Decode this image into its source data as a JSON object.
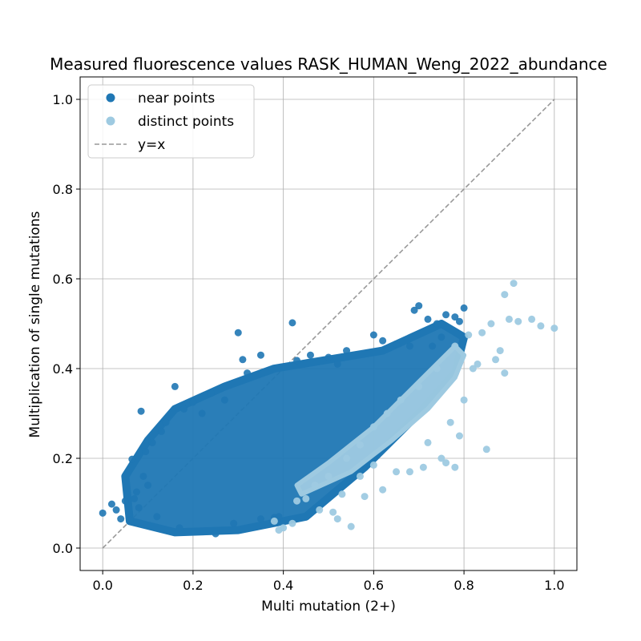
{
  "chart_data": {
    "type": "scatter",
    "title": "Measured fluorescence values RASK_HUMAN_Weng_2022_abundance",
    "xlabel": "Multi mutation (2+)",
    "ylabel": "Multiplication of single mutations",
    "xlim": [
      -0.05,
      1.05
    ],
    "ylim": [
      -0.05,
      1.05
    ],
    "xticks": [
      "0.0",
      "0.2",
      "0.4",
      "0.6",
      "0.8",
      "1.0"
    ],
    "yticks": [
      "0.0",
      "0.2",
      "0.4",
      "0.6",
      "0.8",
      "1.0"
    ],
    "grid": true,
    "legend_position": "top-left",
    "colors": {
      "near": "#1f77b4",
      "distinct": "#9ecae1",
      "reference": "#999999"
    },
    "series": [
      {
        "name": "near points",
        "marker": "circle",
        "points": [
          [
            0.0,
            0.078
          ],
          [
            0.02,
            0.098
          ],
          [
            0.03,
            0.085
          ],
          [
            0.04,
            0.065
          ],
          [
            0.05,
            0.105
          ],
          [
            0.06,
            0.062
          ],
          [
            0.065,
            0.198
          ],
          [
            0.07,
            0.11
          ],
          [
            0.075,
            0.125
          ],
          [
            0.08,
            0.09
          ],
          [
            0.085,
            0.305
          ],
          [
            0.09,
            0.16
          ],
          [
            0.095,
            0.215
          ],
          [
            0.1,
            0.14
          ],
          [
            0.11,
            0.235
          ],
          [
            0.12,
            0.07
          ],
          [
            0.13,
            0.26
          ],
          [
            0.14,
            0.28
          ],
          [
            0.16,
            0.36
          ],
          [
            0.17,
            0.045
          ],
          [
            0.18,
            0.31
          ],
          [
            0.2,
            0.325
          ],
          [
            0.22,
            0.3
          ],
          [
            0.24,
            0.345
          ],
          [
            0.25,
            0.032
          ],
          [
            0.27,
            0.33
          ],
          [
            0.29,
            0.055
          ],
          [
            0.3,
            0.48
          ],
          [
            0.31,
            0.42
          ],
          [
            0.32,
            0.39
          ],
          [
            0.35,
            0.43
          ],
          [
            0.38,
            0.068
          ],
          [
            0.39,
            0.07
          ],
          [
            0.42,
            0.502
          ],
          [
            0.43,
            0.418
          ],
          [
            0.46,
            0.43
          ],
          [
            0.5,
            0.425
          ],
          [
            0.52,
            0.41
          ],
          [
            0.54,
            0.44
          ],
          [
            0.6,
            0.475
          ],
          [
            0.62,
            0.462
          ],
          [
            0.65,
            0.455
          ],
          [
            0.68,
            0.45
          ],
          [
            0.7,
            0.54
          ],
          [
            0.69,
            0.53
          ],
          [
            0.72,
            0.51
          ],
          [
            0.74,
            0.5
          ],
          [
            0.76,
            0.52
          ],
          [
            0.78,
            0.515
          ],
          [
            0.8,
            0.535
          ],
          [
            0.79,
            0.505
          ],
          [
            0.75,
            0.47
          ],
          [
            0.73,
            0.45
          ],
          [
            0.35,
            0.065
          ],
          [
            0.45,
            0.11
          ]
        ]
      },
      {
        "name": "distinct points",
        "marker": "circle",
        "points": [
          [
            0.38,
            0.06
          ],
          [
            0.39,
            0.04
          ],
          [
            0.4,
            0.045
          ],
          [
            0.42,
            0.055
          ],
          [
            0.43,
            0.105
          ],
          [
            0.45,
            0.11
          ],
          [
            0.48,
            0.085
          ],
          [
            0.51,
            0.08
          ],
          [
            0.52,
            0.065
          ],
          [
            0.55,
            0.048
          ],
          [
            0.53,
            0.12
          ],
          [
            0.58,
            0.115
          ],
          [
            0.57,
            0.16
          ],
          [
            0.62,
            0.13
          ],
          [
            0.6,
            0.185
          ],
          [
            0.65,
            0.17
          ],
          [
            0.68,
            0.17
          ],
          [
            0.71,
            0.18
          ],
          [
            0.72,
            0.235
          ],
          [
            0.75,
            0.2
          ],
          [
            0.76,
            0.19
          ],
          [
            0.78,
            0.18
          ],
          [
            0.77,
            0.28
          ],
          [
            0.79,
            0.25
          ],
          [
            0.8,
            0.33
          ],
          [
            0.82,
            0.4
          ],
          [
            0.85,
            0.22
          ],
          [
            0.84,
            0.48
          ],
          [
            0.86,
            0.5
          ],
          [
            0.88,
            0.44
          ],
          [
            0.89,
            0.39
          ],
          [
            0.9,
            0.51
          ],
          [
            0.91,
            0.59
          ],
          [
            0.89,
            0.565
          ],
          [
            0.95,
            0.51
          ],
          [
            0.97,
            0.495
          ],
          [
            1.0,
            0.49
          ],
          [
            0.92,
            0.505
          ],
          [
            0.87,
            0.42
          ],
          [
            0.81,
            0.475
          ],
          [
            0.83,
            0.41
          ],
          [
            0.78,
            0.45
          ],
          [
            0.74,
            0.4
          ],
          [
            0.7,
            0.36
          ],
          [
            0.66,
            0.33
          ],
          [
            0.63,
            0.3
          ],
          [
            0.6,
            0.27
          ],
          [
            0.57,
            0.23
          ],
          [
            0.54,
            0.2
          ],
          [
            0.5,
            0.16
          ],
          [
            0.47,
            0.14
          ]
        ]
      },
      {
        "name": "y=x",
        "type": "line",
        "style": "dashed",
        "x": [
          0.0,
          1.0
        ],
        "y": [
          0.0,
          1.0
        ]
      }
    ]
  }
}
